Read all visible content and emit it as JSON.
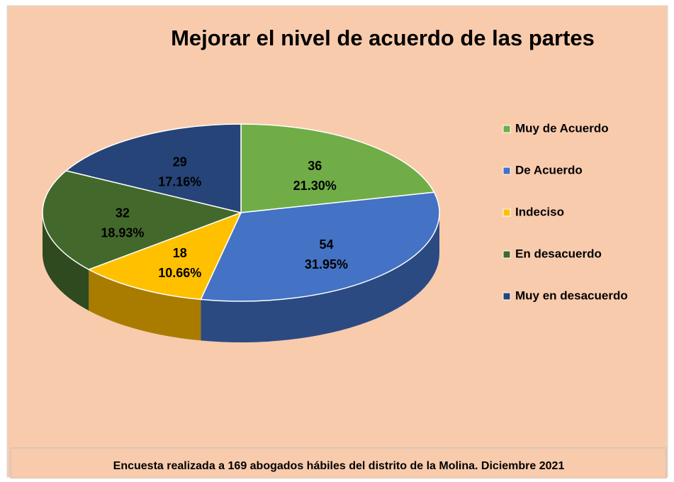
{
  "chart_data": {
    "type": "pie3d",
    "title": "Mejorar el nivel de acuerdo de las partes",
    "categories": [
      "Muy de Acuerdo",
      "De Acuerdo",
      "Indeciso",
      "En desacuerdo",
      "Muy en desacuerdo"
    ],
    "values": [
      36,
      54,
      18,
      32,
      29
    ],
    "percents": [
      21.3,
      31.95,
      10.66,
      18.93,
      17.16
    ],
    "percent_labels": [
      "21.30%",
      "31.95%",
      "10.66%",
      "18.93%",
      "17.16%"
    ],
    "colors": [
      "#70ad47",
      "#4472c4",
      "#ffc000",
      "#43682b",
      "#264478"
    ],
    "side_colors": [
      "#4e7a31",
      "#2b4a82",
      "#a97c00",
      "#2f4a1e",
      "#18305a"
    ],
    "legend": "right",
    "note": "Encuesta realizada a 169 abogados hábiles del distrito de la Molina. Diciembre 2021"
  }
}
